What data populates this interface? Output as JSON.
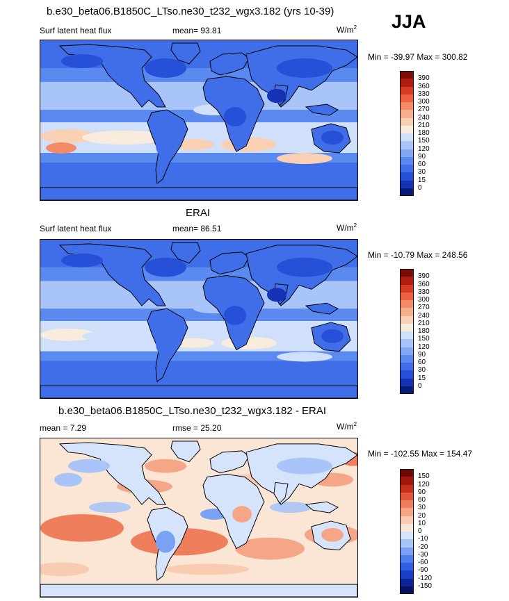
{
  "season": "JJA",
  "panel1": {
    "title": "b.e30_beta06.B1850C_LTso.ne30_t232_wgx3.182 (yrs 10-39)",
    "variable": "Surf latent heat flux",
    "stat": "mean=  93.81",
    "units": "W/m",
    "units_sup": "2",
    "minmax": "Min = -39.97 Max = 300.82"
  },
  "panel2": {
    "title": "ERAI",
    "variable": "Surf latent heat flux",
    "stat": "mean=  86.51",
    "units": "W/m",
    "units_sup": "2",
    "minmax": "Min = -10.79 Max = 248.56"
  },
  "panel3": {
    "title": "b.e30_beta06.B1850C_LTso.ne30_t232_wgx3.182 - ERAI",
    "variable": "mean =   7.29",
    "stat": "rmse =  25.20",
    "units": "W/m",
    "units_sup": "2",
    "minmax": "Min = -102.55 Max = 154.47"
  },
  "chart_data": [
    {
      "type": "heatmap",
      "title": "b.e30_beta06.B1850C_LTso.ne30_t232_wgx3.182 (yrs 10-39)",
      "field": "Surf latent heat flux",
      "units": "W/m2",
      "mean": 93.81,
      "min": -39.97,
      "max": 300.82,
      "levels": [
        0,
        15,
        30,
        60,
        90,
        120,
        150,
        180,
        210,
        240,
        270,
        300,
        330,
        360,
        390
      ],
      "colors": [
        "#0a1a78",
        "#1632b4",
        "#2750d8",
        "#3f6ee8",
        "#5a8af0",
        "#80a8f4",
        "#a8c4f8",
        "#d0e0fb",
        "#f8ecdc",
        "#f9d0b4",
        "#f7ae8c",
        "#f48a66",
        "#ec6040",
        "#d83a22",
        "#b01c10",
        "#7a0c06"
      ]
    },
    {
      "type": "heatmap",
      "title": "ERAI",
      "field": "Surf latent heat flux",
      "units": "W/m2",
      "mean": 86.51,
      "min": -10.79,
      "max": 248.56,
      "levels": [
        0,
        15,
        30,
        60,
        90,
        120,
        150,
        180,
        210,
        240,
        270,
        300,
        330,
        360,
        390
      ],
      "colors": [
        "#0a1a78",
        "#1632b4",
        "#2750d8",
        "#3f6ee8",
        "#5a8af0",
        "#80a8f4",
        "#a8c4f8",
        "#d0e0fb",
        "#f8ecdc",
        "#f9d0b4",
        "#f7ae8c",
        "#f48a66",
        "#ec6040",
        "#d83a22",
        "#b01c10",
        "#7a0c06"
      ]
    },
    {
      "type": "heatmap",
      "title": "b.e30_beta06.B1850C_LTso.ne30_t232_wgx3.182 - ERAI",
      "units": "W/m2",
      "mean": 7.29,
      "rmse": 25.2,
      "min": -102.55,
      "max": 154.47,
      "levels": [
        -150,
        -120,
        -90,
        -60,
        -30,
        -20,
        -10,
        0,
        10,
        20,
        30,
        60,
        90,
        120,
        150
      ],
      "colors": [
        "#08125e",
        "#0c2496",
        "#1840c8",
        "#2e5ee4",
        "#4c7eee",
        "#7aa2f4",
        "#a8c4f8",
        "#d6e4fb",
        "#fbe6d6",
        "#f9cbb1",
        "#f5a686",
        "#ef7e5c",
        "#e2553a",
        "#c8301c",
        "#a0160c",
        "#700806"
      ]
    }
  ]
}
